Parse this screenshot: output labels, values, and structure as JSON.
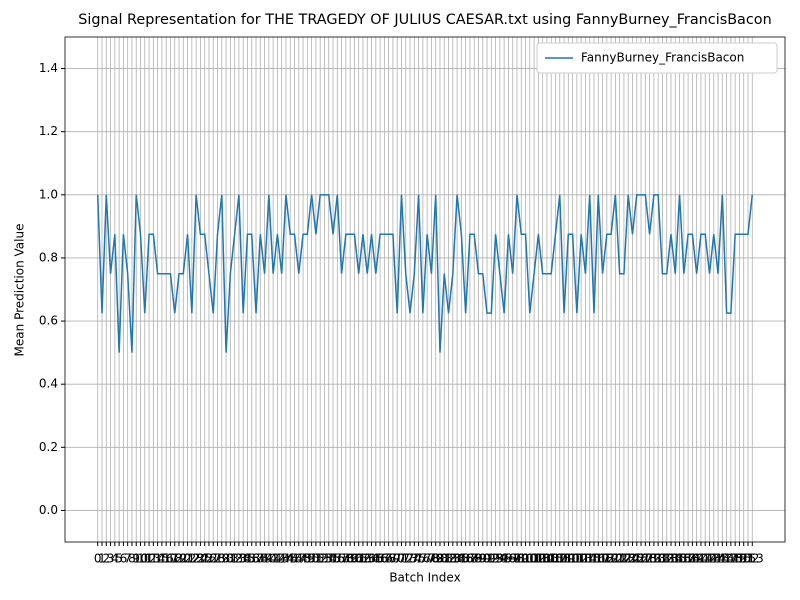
{
  "chart_data": {
    "type": "line",
    "title": "Signal Representation for THE TRAGEDY OF JULIUS CAESAR.txt using FannyBurney_FrancisBacon",
    "xlabel": "Batch Index",
    "ylabel": "Mean Prediction Value",
    "x": [
      0,
      1,
      2,
      3,
      4,
      5,
      6,
      7,
      8,
      9,
      10,
      11,
      12,
      13,
      14,
      15,
      16,
      17,
      18,
      19,
      20,
      21,
      22,
      23,
      24,
      25,
      26,
      27,
      28,
      29,
      30,
      31,
      32,
      33,
      34,
      35,
      36,
      37,
      38,
      39,
      40,
      41,
      42,
      43,
      44,
      45,
      46,
      47,
      48,
      49,
      50,
      51,
      52,
      53,
      54,
      55,
      56,
      57,
      58,
      59,
      60,
      61,
      62,
      63,
      64,
      65,
      66,
      67,
      68,
      69,
      70,
      71,
      72,
      73,
      74,
      75,
      76,
      77,
      78,
      79,
      80,
      81,
      82,
      83,
      84,
      85,
      86,
      87,
      88,
      89,
      90,
      91,
      92,
      93,
      94,
      95,
      96,
      97,
      98,
      99,
      100,
      101,
      102,
      103,
      104,
      105,
      106,
      107,
      108,
      109,
      110,
      111,
      112,
      113,
      114,
      115,
      116,
      117,
      118,
      119,
      120,
      121,
      122,
      123,
      124,
      125,
      126,
      127,
      128,
      129,
      130,
      131,
      132,
      133,
      134,
      135,
      136,
      137,
      138,
      139,
      140,
      141,
      142,
      143,
      144,
      145,
      146,
      147,
      148,
      149,
      150,
      151,
      152,
      153
    ],
    "series": [
      {
        "name": "FannyBurney_FrancisBacon",
        "color": "#1f77b4",
        "values": [
          1,
          0.625,
          1,
          0.75,
          0.875,
          0.5,
          0.875,
          0.75,
          0.5,
          1,
          0.875,
          0.625,
          0.875,
          0.875,
          0.75,
          0.75,
          0.75,
          0.75,
          0.625,
          0.75,
          0.75,
          0.875,
          0.625,
          1,
          0.875,
          0.875,
          0.75,
          0.625,
          0.875,
          1,
          0.5,
          0.75,
          0.875,
          1,
          0.625,
          0.875,
          0.875,
          0.625,
          0.875,
          0.75,
          1,
          0.75,
          0.875,
          0.75,
          1,
          0.875,
          0.875,
          0.75,
          0.875,
          0.875,
          1,
          0.875,
          1,
          1,
          1,
          0.875,
          1,
          0.75,
          0.875,
          0.875,
          0.875,
          0.75,
          0.875,
          0.75,
          0.875,
          0.75,
          0.875,
          0.875,
          0.875,
          0.875,
          0.625,
          1,
          0.75,
          0.625,
          0.75,
          1,
          0.625,
          0.875,
          0.75,
          1,
          0.5,
          0.75,
          0.625,
          0.75,
          1,
          0.875,
          0.625,
          0.875,
          0.875,
          0.75,
          0.75,
          0.625,
          0.625,
          0.875,
          0.75,
          0.625,
          0.875,
          0.75,
          1,
          0.875,
          0.875,
          0.625,
          0.75,
          0.875,
          0.75,
          0.75,
          0.75,
          0.875,
          1,
          0.625,
          0.875,
          0.875,
          0.625,
          0.875,
          0.75,
          1,
          0.625,
          1,
          0.75,
          0.875,
          0.875,
          1,
          0.75,
          0.75,
          1,
          0.875,
          1,
          1,
          1,
          0.875,
          1,
          1,
          0.75,
          0.75,
          0.875,
          0.75,
          1,
          0.75,
          0.875,
          0.875,
          0.75,
          0.875,
          0.875,
          0.75,
          0.875,
          0.75,
          1,
          0.625,
          0.625,
          0.875,
          0.875,
          0.875,
          0.875,
          1
        ]
      }
    ],
    "xlim": [
      -7.65,
      160.65
    ],
    "ylim": [
      -0.1,
      1.5
    ],
    "xticks": [
      0,
      1,
      2,
      3,
      4,
      5,
      6,
      7,
      8,
      9,
      10,
      11,
      12,
      13,
      14,
      15,
      16,
      17,
      18,
      19,
      20,
      21,
      22,
      23,
      24,
      25,
      26,
      27,
      28,
      29,
      30,
      31,
      32,
      33,
      34,
      35,
      36,
      37,
      38,
      39,
      40,
      41,
      42,
      43,
      44,
      45,
      46,
      47,
      48,
      49,
      50,
      51,
      52,
      53,
      54,
      55,
      56,
      57,
      58,
      59,
      60,
      61,
      62,
      63,
      64,
      65,
      66,
      67,
      68,
      69,
      70,
      71,
      72,
      73,
      74,
      75,
      76,
      77,
      78,
      79,
      80,
      81,
      82,
      83,
      84,
      85,
      86,
      87,
      88,
      89,
      90,
      91,
      92,
      93,
      94,
      95,
      96,
      97,
      98,
      99,
      100,
      101,
      102,
      103,
      104,
      105,
      106,
      107,
      108,
      109,
      110,
      111,
      112,
      113,
      114,
      115,
      116,
      117,
      118,
      119,
      120,
      121,
      122,
      123,
      124,
      125,
      126,
      127,
      128,
      129,
      130,
      131,
      132,
      133,
      134,
      135,
      136,
      137,
      138,
      139,
      140,
      141,
      142,
      143,
      144,
      145,
      146,
      147,
      148,
      149,
      150,
      151,
      152,
      153
    ],
    "yticks": [
      {
        "value": 0,
        "label": "0.0"
      },
      0.2,
      0.4,
      0.6,
      0.8,
      {
        "value": 1,
        "label": "1.0"
      },
      1.2,
      1.4
    ],
    "grid": true,
    "legend": "upper right"
  }
}
